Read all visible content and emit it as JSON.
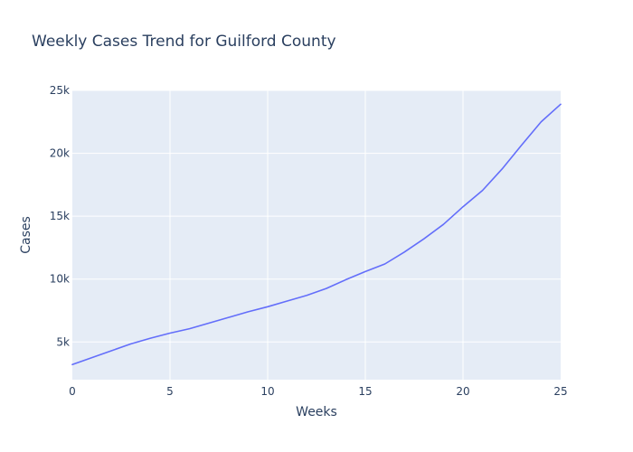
{
  "chart_data": {
    "type": "line",
    "title": "Weekly Cases Trend for Guilford County",
    "xlabel": "Weeks",
    "ylabel": "Cases",
    "xlim": [
      0,
      25
    ],
    "ylim": [
      2000,
      25000
    ],
    "x_ticks": [
      0,
      5,
      10,
      15,
      20,
      25
    ],
    "x_tick_labels": [
      "0",
      "5",
      "10",
      "15",
      "20",
      "25"
    ],
    "y_ticks": [
      5000,
      10000,
      15000,
      20000,
      25000
    ],
    "y_tick_labels": [
      "5k",
      "10k",
      "15k",
      "20k",
      "25k"
    ],
    "grid": true,
    "legend": "none",
    "colors": {
      "plot_background": "#e5ecf6",
      "grid": "#ffffff",
      "line": "#636efa",
      "text": "#2a3f5f"
    },
    "series": [
      {
        "x": [
          0,
          1,
          2,
          3,
          4,
          5,
          6,
          7,
          8,
          9,
          10,
          11,
          12,
          13,
          14,
          15,
          16,
          17,
          18,
          19,
          20,
          21,
          22,
          23,
          24,
          25
        ],
        "values": [
          3200,
          3750,
          4300,
          4850,
          5300,
          5700,
          6050,
          6500,
          6950,
          7400,
          7800,
          8250,
          8700,
          9250,
          9950,
          10600,
          11200,
          12150,
          13200,
          14350,
          15750,
          17050,
          18750,
          20650,
          22500,
          23900
        ]
      }
    ]
  }
}
